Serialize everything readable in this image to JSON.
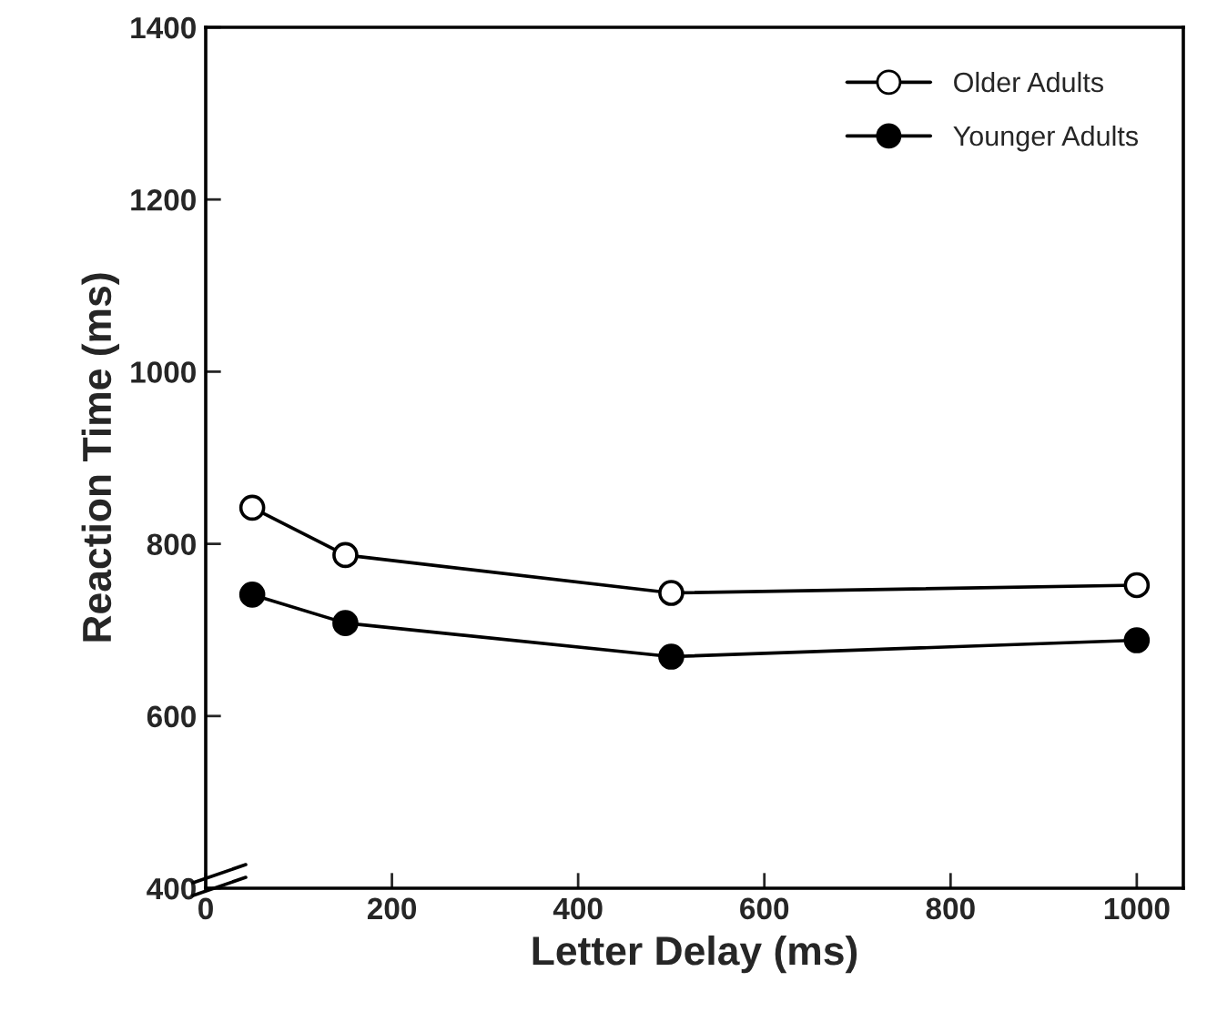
{
  "chart_data": {
    "type": "line",
    "xlabel": "Letter Delay (ms)",
    "ylabel": "Reaction Time (ms)",
    "x": [
      50,
      150,
      500,
      1000
    ],
    "series": [
      {
        "name": "Older Adults",
        "color": "#000000",
        "values": [
          842,
          787,
          743,
          752
        ]
      },
      {
        "name": "Younger Adults",
        "color": "#000000",
        "values": [
          741,
          708,
          669,
          688
        ]
      }
    ],
    "xlim": [
      0,
      1050
    ],
    "xticks": [
      0,
      200,
      400,
      600,
      800,
      1000
    ],
    "ylim": [
      400,
      1400
    ],
    "yticks": [
      400,
      600,
      800,
      1000,
      1200,
      1400
    ],
    "marker": "circle",
    "line_style": "solid",
    "grid": false,
    "legend": "top right"
  }
}
